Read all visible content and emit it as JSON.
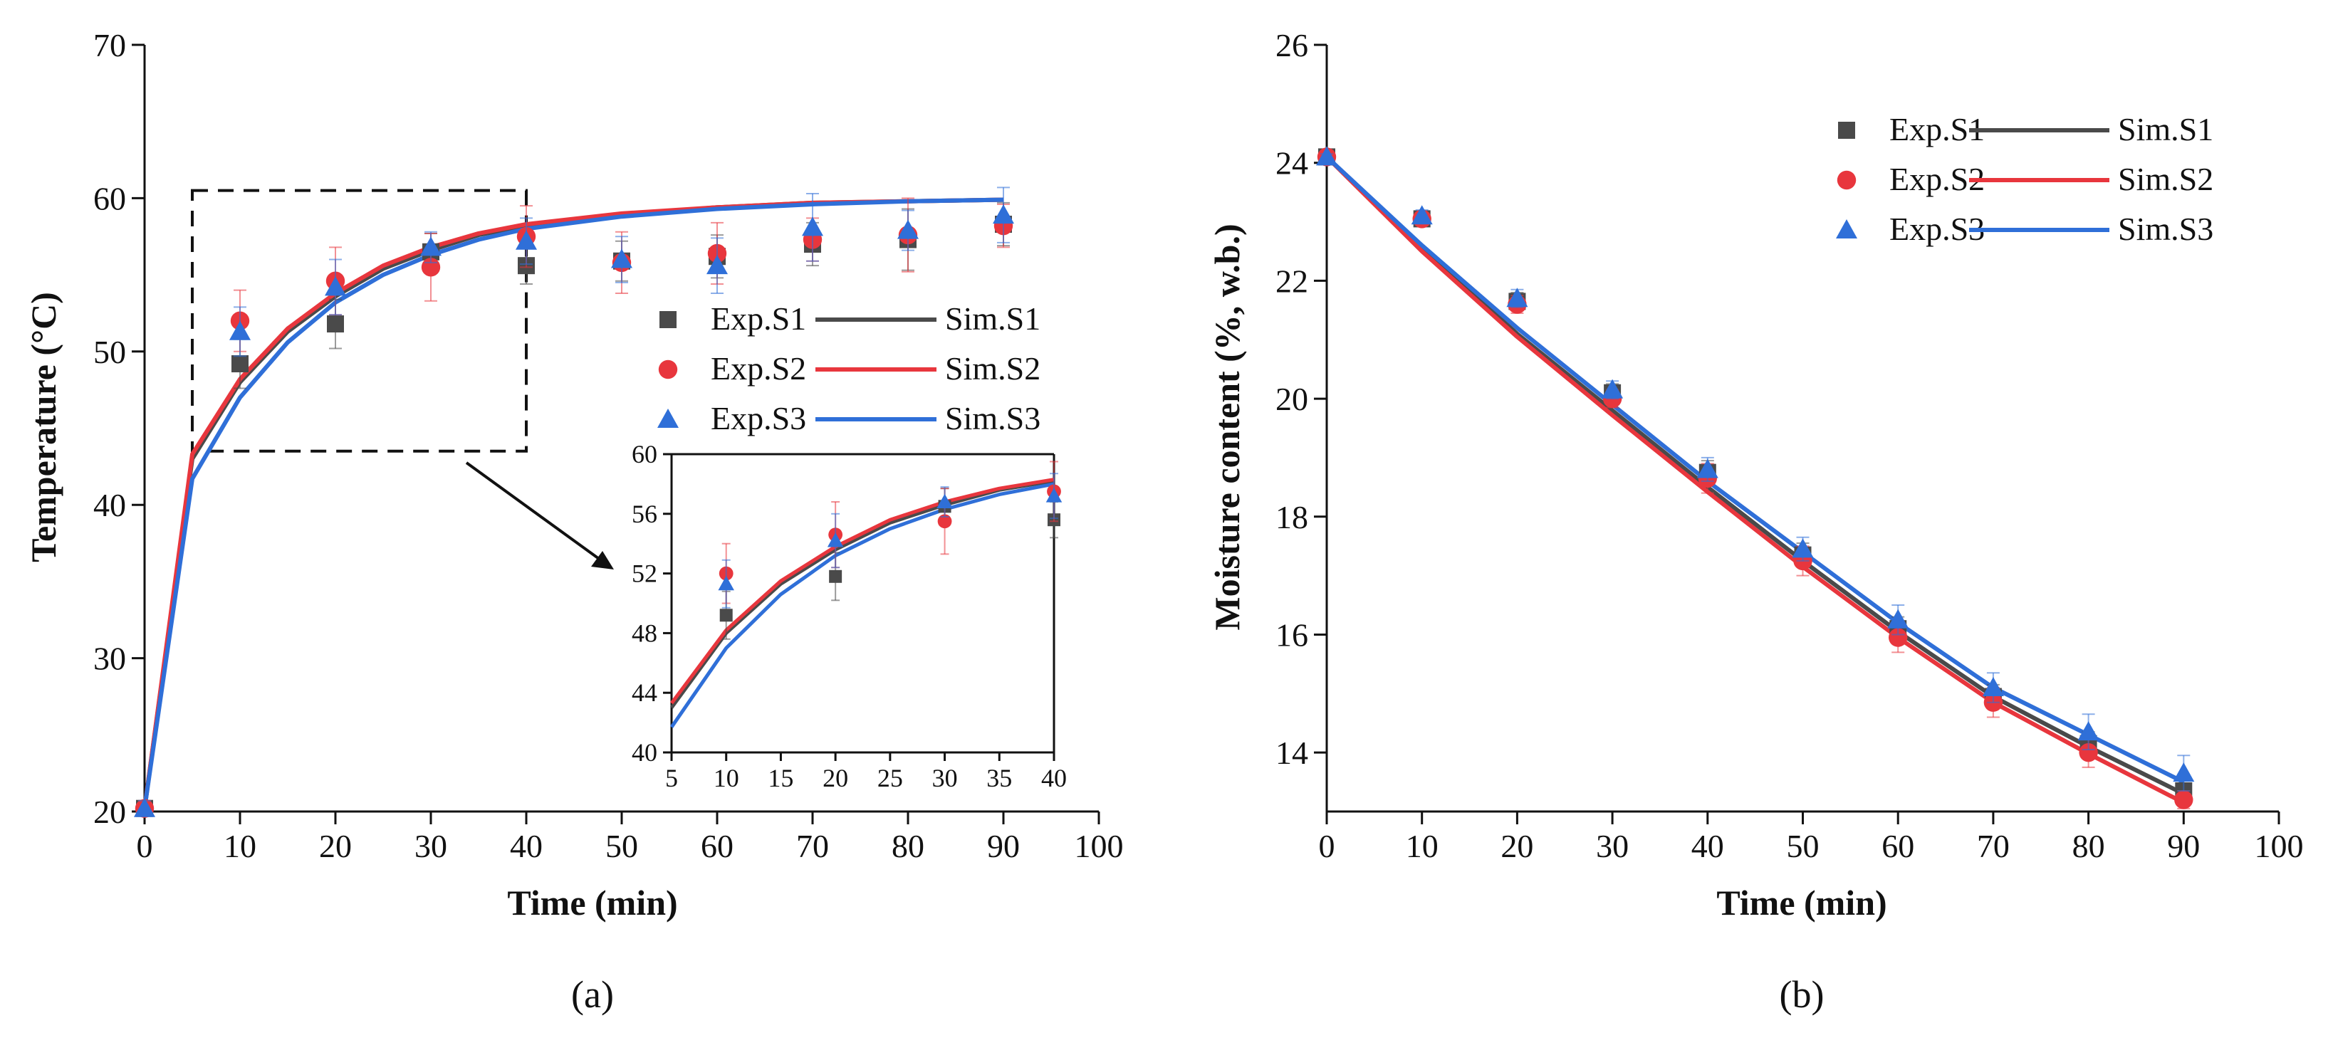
{
  "colors": {
    "S1": "#4a4a4a",
    "S2": "#e8363d",
    "S3": "#2f6fd8"
  },
  "chart_data": [
    {
      "id": "a",
      "type": "scatter",
      "panel_label": "(a)",
      "title": "",
      "xlabel": "Time (min)",
      "ylabel": "Temperature (°C)",
      "xlim": [
        0,
        100
      ],
      "ylim": [
        20,
        70
      ],
      "xticks": [
        0,
        10,
        20,
        30,
        40,
        50,
        60,
        70,
        80,
        90,
        100
      ],
      "yticks": [
        20,
        30,
        40,
        50,
        60,
        70
      ],
      "grid": false,
      "legend_position": "right",
      "series": [
        {
          "name": "Exp.S1",
          "kind": "scatter",
          "marker": "square",
          "color_key": "S1",
          "x": [
            0,
            10,
            20,
            30,
            40,
            50,
            60,
            70,
            80,
            90
          ],
          "y": [
            20.2,
            49.2,
            51.8,
            56.5,
            55.6,
            55.9,
            56.2,
            57.0,
            57.3,
            58.3
          ],
          "err": [
            0.5,
            1.6,
            1.6,
            1.2,
            1.2,
            1.3,
            1.4,
            1.4,
            2.0,
            1.4
          ]
        },
        {
          "name": "Exp.S2",
          "kind": "scatter",
          "marker": "circle",
          "color_key": "S2",
          "x": [
            0,
            10,
            20,
            30,
            40,
            50,
            60,
            70,
            80,
            90
          ],
          "y": [
            20.2,
            52.0,
            54.6,
            55.5,
            57.5,
            55.8,
            56.4,
            57.3,
            57.6,
            58.2
          ],
          "err": [
            0.5,
            2.0,
            2.2,
            2.2,
            2.0,
            2.0,
            2.0,
            1.4,
            2.4,
            1.4
          ]
        },
        {
          "name": "Exp.S3",
          "kind": "scatter",
          "marker": "triangle",
          "color_key": "S3",
          "x": [
            0,
            10,
            20,
            30,
            40,
            50,
            60,
            70,
            80,
            90
          ],
          "y": [
            20.2,
            51.3,
            54.2,
            56.8,
            57.2,
            56.0,
            55.6,
            58.1,
            57.9,
            58.9
          ],
          "err": [
            0.5,
            1.6,
            1.8,
            1.0,
            1.5,
            1.5,
            1.8,
            2.2,
            1.3,
            1.8
          ]
        },
        {
          "name": "Sim.S1",
          "kind": "line",
          "color_key": "S1",
          "x": [
            0,
            5,
            10,
            15,
            20,
            25,
            30,
            35,
            40,
            50,
            60,
            70,
            80,
            90
          ],
          "y": [
            20.2,
            43.0,
            48.0,
            51.3,
            53.6,
            55.4,
            56.6,
            57.6,
            58.2,
            58.9,
            59.4,
            59.7,
            59.8,
            59.9
          ]
        },
        {
          "name": "Sim.S2",
          "kind": "line",
          "color_key": "S2",
          "x": [
            0,
            5,
            10,
            15,
            20,
            25,
            30,
            35,
            40,
            50,
            60,
            70,
            80,
            90
          ],
          "y": [
            20.2,
            43.3,
            48.2,
            51.5,
            53.8,
            55.6,
            56.8,
            57.7,
            58.3,
            59.0,
            59.4,
            59.7,
            59.8,
            59.9
          ]
        },
        {
          "name": "Sim.S3",
          "kind": "line",
          "color_key": "S3",
          "x": [
            0,
            5,
            10,
            15,
            20,
            25,
            30,
            35,
            40,
            50,
            60,
            70,
            80,
            90
          ],
          "y": [
            20.2,
            41.7,
            47.0,
            50.6,
            53.2,
            55.0,
            56.3,
            57.3,
            58.0,
            58.8,
            59.3,
            59.6,
            59.8,
            59.9
          ]
        }
      ],
      "zoom_box": {
        "xlim": [
          5,
          40
        ],
        "ylim": [
          43.5,
          60.5
        ]
      },
      "inset": {
        "xlim": [
          5,
          40
        ],
        "ylim": [
          40,
          60
        ],
        "xticks": [
          5,
          10,
          15,
          20,
          25,
          30,
          35,
          40
        ],
        "yticks": [
          40,
          44,
          48,
          52,
          56,
          60
        ]
      }
    },
    {
      "id": "b",
      "type": "scatter",
      "panel_label": "(b)",
      "title": "",
      "xlabel": "Time (min)",
      "ylabel": "Moisture content (%, w.b.)",
      "xlim": [
        0,
        100
      ],
      "ylim": [
        13,
        26
      ],
      "xticks": [
        0,
        10,
        20,
        30,
        40,
        50,
        60,
        70,
        80,
        90,
        100
      ],
      "yticks": [
        14,
        16,
        18,
        20,
        22,
        24,
        26
      ],
      "grid": false,
      "legend_position": "top-right",
      "series": [
        {
          "name": "Exp.S1",
          "kind": "scatter",
          "marker": "square",
          "color_key": "S1",
          "x": [
            0,
            10,
            20,
            30,
            40,
            50,
            60,
            70,
            80,
            90
          ],
          "y": [
            24.1,
            23.05,
            21.65,
            20.1,
            18.75,
            17.35,
            16.1,
            14.95,
            14.15,
            13.35
          ],
          "err": [
            0.05,
            0.1,
            0.15,
            0.15,
            0.2,
            0.2,
            0.2,
            0.2,
            0.2,
            0.2
          ]
        },
        {
          "name": "Exp.S2",
          "kind": "scatter",
          "marker": "circle",
          "color_key": "S2",
          "x": [
            0,
            10,
            20,
            30,
            40,
            50,
            60,
            70,
            80,
            90
          ],
          "y": [
            24.1,
            23.05,
            21.6,
            20.0,
            18.65,
            17.25,
            15.95,
            14.85,
            14.0,
            13.2
          ],
          "err": [
            0.05,
            0.1,
            0.15,
            0.15,
            0.25,
            0.25,
            0.25,
            0.25,
            0.25,
            0.15
          ]
        },
        {
          "name": "Exp.S3",
          "kind": "scatter",
          "marker": "triangle",
          "color_key": "S3",
          "x": [
            0,
            10,
            20,
            30,
            40,
            50,
            60,
            70,
            80,
            90
          ],
          "y": [
            24.1,
            23.1,
            21.7,
            20.15,
            18.8,
            17.45,
            16.25,
            15.1,
            14.35,
            13.65
          ],
          "err": [
            0.05,
            0.1,
            0.15,
            0.15,
            0.2,
            0.2,
            0.25,
            0.25,
            0.3,
            0.3
          ]
        },
        {
          "name": "Sim.S1",
          "kind": "line",
          "color_key": "S1",
          "x": [
            0,
            10,
            20,
            30,
            40,
            50,
            60,
            70,
            80,
            90
          ],
          "y": [
            24.1,
            22.55,
            21.1,
            19.8,
            18.5,
            17.25,
            16.05,
            14.95,
            14.1,
            13.3
          ]
        },
        {
          "name": "Sim.S2",
          "kind": "line",
          "color_key": "S2",
          "x": [
            0,
            10,
            20,
            30,
            40,
            50,
            60,
            70,
            80,
            90
          ],
          "y": [
            24.1,
            22.5,
            21.05,
            19.72,
            18.42,
            17.15,
            15.95,
            14.85,
            13.98,
            13.15
          ]
        },
        {
          "name": "Sim.S3",
          "kind": "line",
          "color_key": "S3",
          "x": [
            0,
            10,
            20,
            30,
            40,
            50,
            60,
            70,
            80,
            90
          ],
          "y": [
            24.1,
            22.6,
            21.2,
            19.9,
            18.6,
            17.4,
            16.2,
            15.1,
            14.3,
            13.5
          ]
        }
      ]
    }
  ]
}
